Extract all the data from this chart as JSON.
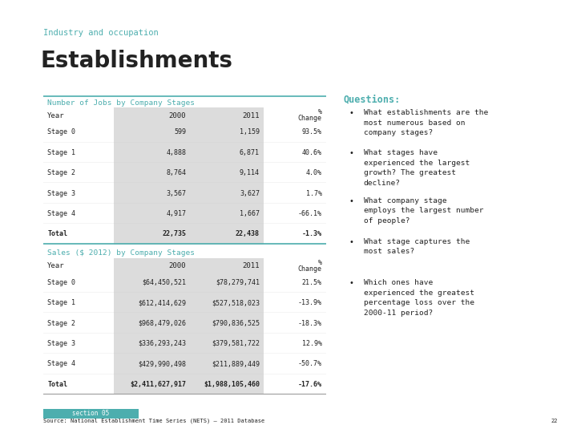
{
  "subtitle": "Industry and occupation",
  "title": "Establishments",
  "table1_title": "Number of Jobs by Company Stages",
  "table1_headers": [
    "Year",
    "2000",
    "2011",
    "% Change"
  ],
  "table1_rows": [
    [
      "Stage 0",
      "599",
      "1,159",
      "93.5%"
    ],
    [
      "Stage 1",
      "4,888",
      "6,871",
      "40.6%"
    ],
    [
      "Stage 2",
      "8,764",
      "9,114",
      "4.0%"
    ],
    [
      "Stage 3",
      "3,567",
      "3,627",
      "1.7%"
    ],
    [
      "Stage 4",
      "4,917",
      "1,667",
      "-66.1%"
    ],
    [
      "Total",
      "22,735",
      "22,438",
      "-1.3%"
    ]
  ],
  "table2_title": "Sales ($ 2012) by Company Stages",
  "table2_headers": [
    "Year",
    "2000",
    "2011",
    "% Change"
  ],
  "table2_rows": [
    [
      "Stage 0",
      "$64,450,521",
      "$78,279,741",
      "21.5%"
    ],
    [
      "Stage 1",
      "$612,414,629",
      "$527,518,023",
      "-13.9%"
    ],
    [
      "Stage 2",
      "$968,479,026",
      "$790,836,525",
      "-18.3%"
    ],
    [
      "Stage 3",
      "$336,293,243",
      "$379,581,722",
      "12.9%"
    ],
    [
      "Stage 4",
      "$429,990,498",
      "$211,889,449",
      "-50.7%"
    ],
    [
      "Total",
      "$2,411,627,917",
      "$1,988,105,460",
      "-17.6%"
    ]
  ],
  "questions_title": "Questions:",
  "questions": [
    "What establishments are the\nmost numerous based on\ncompany stages?",
    "What stages have\nexperienced the largest\ngrowth? The greatest\ndecline?",
    "What company stage\nemploys the largest number\nof people?",
    "What stage captures the\nmost sales?",
    "Which ones have\nexperienced the greatest\npercentage loss over the\n2000-11 period?"
  ],
  "footer": "Source: National Establishment Time Series (NETS) – 2011 Database",
  "page_num": "22",
  "section": "section 05",
  "teal_color": "#4DAEAE",
  "dark_color": "#222222",
  "alt_row_bg": "#DCDCDC",
  "white": "#FFFFFF",
  "bg_color": "#FFFFFF",
  "line_color": "#999999",
  "teal_line": "#4DAEAE"
}
